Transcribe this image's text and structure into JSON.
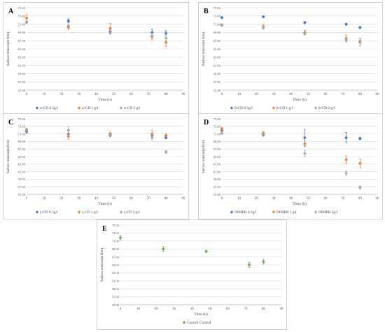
{
  "chart_data": [
    {
      "type": "scatter",
      "panel_label": "A",
      "xlabel": "Time (h)",
      "ylabel": "Surface tension(mN/m)",
      "xlim": [
        0,
        90
      ],
      "ylim": [
        55,
        75
      ],
      "xticks": [
        0,
        10,
        20,
        30,
        40,
        50,
        60,
        70,
        80,
        90
      ],
      "yticks": [
        55,
        57,
        59,
        61,
        63,
        65,
        67,
        69,
        71,
        73,
        75
      ],
      "ytick_labels": [
        "55.00",
        "57.00",
        "59.00",
        "61.00",
        "63.00",
        "65.00",
        "67.00",
        "69.00",
        "71.00",
        "73.00",
        "75.00"
      ],
      "legend_position": "bottom",
      "series": [
        {
          "name": "α-CD 0.5g/l",
          "color": "#4472C4",
          "marker": "diamond",
          "x": [
            0,
            24,
            48,
            72,
            80
          ],
          "y": [
            71.5,
            71.8,
            69.2,
            69.0,
            68.8
          ],
          "err": [
            0.3,
            0.5,
            0.6,
            0.8,
            0.6
          ]
        },
        {
          "name": "α-CD 1 g/l",
          "color": "#ED7D31",
          "marker": "diamond",
          "x": [
            0,
            24,
            48,
            72,
            80
          ],
          "y": [
            72.5,
            70.2,
            70.0,
            68.0,
            66.6
          ],
          "err": [
            0.8,
            0.5,
            1.2,
            0.8,
            1.0
          ]
        },
        {
          "name": "α-CD 2 g/l",
          "color": "#A5A5A5",
          "marker": "diamond",
          "x": [
            0,
            24,
            48,
            72,
            80
          ],
          "y": [
            71.5,
            70.5,
            69.4,
            68.2,
            67.6
          ],
          "err": [
            0.3,
            0.4,
            0.5,
            0.6,
            0.6
          ]
        }
      ]
    },
    {
      "type": "scatter",
      "panel_label": "B",
      "xlabel": "Time (h)",
      "ylabel": "Surface tension(mN/m)",
      "xlim": [
        0,
        90
      ],
      "ylim": [
        55,
        75
      ],
      "xticks": [
        0,
        10,
        20,
        30,
        40,
        50,
        60,
        70,
        80,
        90
      ],
      "yticks": [
        55,
        57,
        59,
        61,
        63,
        65,
        67,
        69,
        71,
        73,
        75
      ],
      "ytick_labels": [
        "55.00",
        "57.00",
        "59.00",
        "61.00",
        "63.00",
        "65.00",
        "67.00",
        "69.00",
        "71.00",
        "73.00",
        "75.00"
      ],
      "legend_position": "bottom",
      "series": [
        {
          "name": "β-CD 0.5g/l",
          "color": "#4472C4",
          "marker": "diamond",
          "x": [
            0,
            24,
            48,
            72,
            80
          ],
          "y": [
            72.6,
            72.8,
            71.4,
            71.0,
            70.2
          ],
          "err": [
            0.2,
            0.2,
            0.2,
            0.2,
            0.2
          ]
        },
        {
          "name": "β-CD 1 g/l",
          "color": "#ED7D31",
          "marker": "diamond",
          "x": [
            0,
            24,
            48,
            72,
            80
          ],
          "y": [
            70.8,
            70.4,
            69.0,
            67.6,
            66.6
          ],
          "err": [
            0.3,
            0.6,
            0.5,
            0.8,
            0.9
          ]
        },
        {
          "name": "β-CD 2 g/l",
          "color": "#A5A5A5",
          "marker": "diamond",
          "x": [
            0,
            24,
            48,
            72,
            80
          ],
          "y": [
            70.8,
            70.2,
            68.8,
            67.2,
            67.0
          ],
          "err": [
            0.3,
            0.4,
            0.4,
            0.5,
            0.6
          ]
        }
      ]
    },
    {
      "type": "scatter",
      "panel_label": "C",
      "xlabel": "Time (h)",
      "ylabel": "Surface tension(mN/m)",
      "xlim": [
        0,
        90
      ],
      "ylim": [
        55,
        75
      ],
      "xticks": [
        0,
        10,
        20,
        30,
        40,
        50,
        60,
        70,
        80,
        90
      ],
      "yticks": [
        55,
        57,
        59,
        61,
        63,
        65,
        67,
        69,
        71,
        73,
        75
      ],
      "ytick_labels": [
        "55.00",
        "57.00",
        "59.00",
        "61.00",
        "63.00",
        "65.00",
        "67.00",
        "69.00",
        "71.00",
        "73.00",
        "75.00"
      ],
      "legend_position": "bottom",
      "series": [
        {
          "name": "γ-CD 0.5g/l",
          "color": "#4472C4",
          "marker": "diamond",
          "x": [
            0,
            24,
            48,
            72,
            80
          ],
          "y": [
            71.6,
            71.0,
            70.6,
            70.6,
            70.0
          ],
          "err": [
            0.4,
            0.8,
            0.3,
            0.5,
            0.3
          ]
        },
        {
          "name": "γ-CD 1 g/l",
          "color": "#ED7D31",
          "marker": "diamond",
          "x": [
            0,
            24,
            48,
            72,
            80
          ],
          "y": [
            72.0,
            70.4,
            71.0,
            71.0,
            70.6
          ],
          "err": [
            0.3,
            0.8,
            0.4,
            1.0,
            0.4
          ]
        },
        {
          "name": "γ-CD 2 g/l",
          "color": "#A5A5A5",
          "marker": "diamond",
          "x": [
            0,
            24,
            48,
            72,
            80
          ],
          "y": [
            72.2,
            72.0,
            70.8,
            70.0,
            66.2
          ],
          "err": [
            0.3,
            1.0,
            0.4,
            0.6,
            0.4
          ]
        }
      ]
    },
    {
      "type": "scatter",
      "panel_label": "D",
      "xlabel": "Time (h)",
      "ylabel": "Surface tension(mN/m)",
      "xlim": [
        0,
        90
      ],
      "ylim": [
        55,
        75
      ],
      "xticks": [
        0,
        10,
        20,
        30,
        40,
        50,
        60,
        70,
        80,
        90
      ],
      "yticks": [
        55,
        57,
        59,
        61,
        63,
        65,
        67,
        69,
        71,
        73,
        75
      ],
      "ytick_labels": [
        "55.00",
        "57.00",
        "59.00",
        "61.00",
        "63.00",
        "65.00",
        "67.00",
        "69.00",
        "71.00",
        "73.00",
        "75.00"
      ],
      "legend_position": "bottom",
      "series": [
        {
          "name": "DIMEB 0.5g/l",
          "color": "#4472C4",
          "marker": "diamond",
          "x": [
            0,
            24,
            48,
            72,
            80
          ],
          "y": [
            72.0,
            70.8,
            70.0,
            70.0,
            69.8
          ],
          "err": [
            0.3,
            0.4,
            2.2,
            1.4,
            0.3
          ]
        },
        {
          "name": "DIMEB 1 g/l",
          "color": "#ED7D31",
          "marker": "diamond",
          "x": [
            0,
            24,
            48,
            72,
            80
          ],
          "y": [
            72.4,
            71.2,
            68.4,
            64.2,
            63.2
          ],
          "err": [
            0.4,
            0.4,
            0.8,
            1.0,
            1.2
          ]
        },
        {
          "name": "DIMEB 2g/l",
          "color": "#A5A5A5",
          "marker": "diamond",
          "x": [
            0,
            24,
            48,
            72,
            80
          ],
          "y": [
            71.2,
            71.0,
            65.8,
            60.6,
            56.8
          ],
          "err": [
            0.3,
            0.4,
            0.8,
            0.6,
            0.4
          ]
        }
      ]
    },
    {
      "type": "scatter",
      "panel_label": "E",
      "xlabel": "Time (h)",
      "ylabel": "Surface tension(mN/m)",
      "xlim": [
        0,
        90
      ],
      "ylim": [
        55,
        75
      ],
      "xticks": [
        0,
        10,
        20,
        30,
        40,
        50,
        60,
        70,
        80,
        90
      ],
      "yticks": [
        55,
        57,
        59,
        61,
        63,
        65,
        67,
        69,
        71,
        73,
        75
      ],
      "ytick_labels": [
        "55.00",
        "57.00",
        "59.00",
        "61.00",
        "63.00",
        "65.00",
        "67.00",
        "69.00",
        "71.00",
        "73.00",
        "75.00"
      ],
      "legend_position": "bottom",
      "series": [
        {
          "name": "Control Control",
          "color": "#70AD47",
          "marker": "diamond",
          "x": [
            0,
            24,
            48,
            72,
            80
          ],
          "y": [
            71.8,
            69.0,
            68.4,
            65.0,
            65.8
          ],
          "err": [
            0.6,
            0.6,
            0.3,
            0.6,
            0.6
          ]
        }
      ]
    }
  ]
}
